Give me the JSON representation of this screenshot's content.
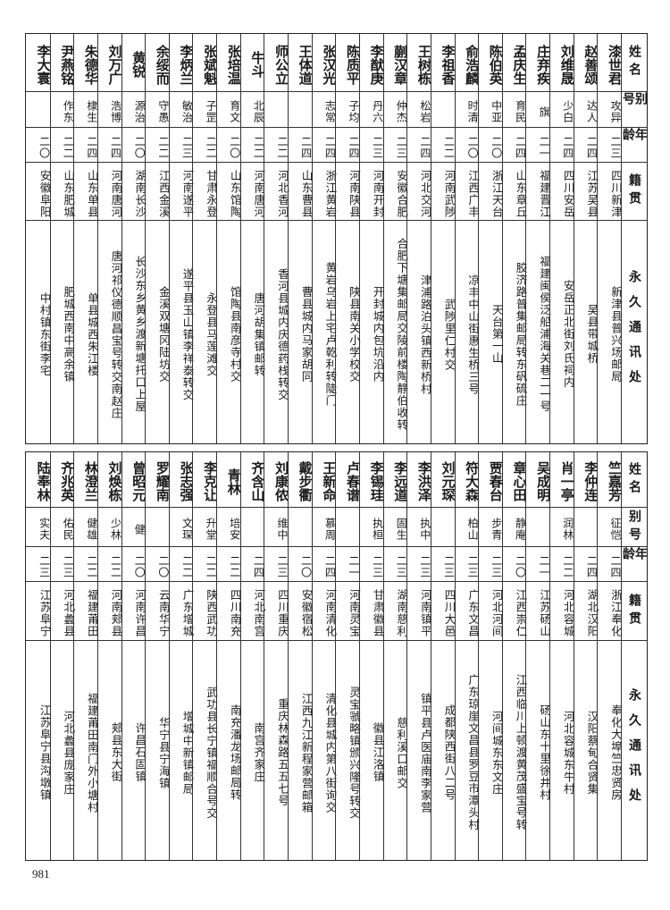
{
  "header": {
    "name": "姓名",
    "alias": "别号",
    "age": "年龄",
    "native": "籍贯",
    "address": "永久通讯处"
  },
  "sections": [
    {
      "people": [
        {
          "name": "漆世君",
          "alias": "攻异",
          "age": "二三",
          "native": "四川新津",
          "address": "新津县普兴场邮局"
        },
        {
          "name": "赵善颂",
          "alias": "达人",
          "age": "二四",
          "native": "江苏吴县",
          "address": "吴县带城桥"
        },
        {
          "name": "刘维晟",
          "alias": "少白",
          "age": "二四",
          "native": "四川安岳",
          "address": "安岳正北街刘氏祠内"
        },
        {
          "name": "庄弃疾",
          "alias": "旗",
          "age": "二一",
          "native": "福建晋江",
          "address": "福建闽侯泛船浦海关巷二一号"
        },
        {
          "name": "孟庆生",
          "alias": "育民",
          "age": "二四",
          "native": "山东章丘",
          "address": "胶济路普集邮局转东矾硫庄"
        },
        {
          "name": "陈伯英",
          "alias": "中亚",
          "age": "二〇",
          "native": "浙江天台",
          "address": "天台第一山"
        },
        {
          "name": "俞浩麟",
          "alias": "时清",
          "age": "二〇",
          "native": "江西广丰",
          "address": "凉丰中山街惠生桥三号"
        },
        {
          "name": "李祖香",
          "alias": "",
          "age": "二二",
          "native": "河南武陟",
          "address": "武陟里仁村交"
        },
        {
          "name": "王树栋",
          "alias": "松岩",
          "age": "二四",
          "native": "河北交河",
          "address": "津浦路泊头镇西新桥村"
        },
        {
          "name": "蒯汉章",
          "alias": "仲杰",
          "age": "二三",
          "native": "安徽合肥",
          "address": "合肥下塘集邮局交陵前楼陶静伯收转"
        },
        {
          "name": "李猷庚",
          "alias": "丹六",
          "age": "二三",
          "native": "河南开封",
          "address": "开封城内包坑沿内"
        },
        {
          "name": "陈质平",
          "alias": "子均",
          "age": "二四",
          "native": "河南陕县",
          "address": "陕县南关小学校交"
        },
        {
          "name": "张汉光",
          "alias": "志常",
          "age": "二四",
          "native": "浙江黄岩",
          "address": "黄岩乌岩上宅卢乾利转陡门"
        },
        {
          "name": "王体道",
          "alias": "",
          "age": "二四",
          "native": "山东曹县",
          "address": "曹县城内马家胡同"
        },
        {
          "name": "师公立",
          "alias": "",
          "age": "二二",
          "native": "河北香河",
          "address": "香河县城内庆德药栈转交"
        },
        {
          "name": "牛斗",
          "alias": "北辰",
          "age": "二二",
          "native": "河南唐河",
          "address": "唐河胡集镇邮转"
        },
        {
          "name": "张培温",
          "alias": "育文",
          "age": "二〇",
          "native": "山东馆陶",
          "address": "馆陶县南彦寺村交"
        },
        {
          "name": "张斌魁",
          "alias": "子罡",
          "age": "二二",
          "native": "甘肃永登",
          "address": "永登县马莲滩交"
        },
        {
          "name": "李炳兰",
          "alias": "敏治",
          "age": "二三",
          "native": "河南遂平",
          "address": "遂平县玉山镇李祥泰转交"
        },
        {
          "name": "余绥而",
          "alias": "守愚",
          "age": "二二",
          "native": "江西金溪",
          "address": "金溪双塘冈陆坊交"
        },
        {
          "name": "黄锐",
          "alias": "源治",
          "age": "二〇",
          "native": "湖南长沙",
          "address": "长沙东乡黄乡渡新塘托口上屋"
        },
        {
          "name": "刘万广",
          "alias": "浩博",
          "age": "二四",
          "native": "河南唐河",
          "address": "唐河祁仪德顺昌宝号转交南赵庄"
        },
        {
          "name": "朱德华",
          "alias": "棣生",
          "age": "二四",
          "native": "山东单县",
          "address": "单县城西朱江楼"
        },
        {
          "name": "尹燕铭",
          "alias": "作东",
          "age": "二二",
          "native": "山东肥城",
          "address": "肥城西南中高余镇"
        },
        {
          "name": "李大寰",
          "alias": "",
          "age": "二〇",
          "native": "安徽阜阳",
          "address": "中村镇东街李宅"
        }
      ]
    },
    {
      "people": [
        {
          "name": "竺嘉芳",
          "alias": "征恺",
          "age": "二四",
          "native": "浙江奉化",
          "address": "奉化大埠竺忠贤房"
        },
        {
          "name": "李仲连",
          "alias": "",
          "age": "二四",
          "native": "湖北汉阳",
          "address": "汉阳蔡甸合贤集"
        },
        {
          "name": "肖一亭",
          "alias": "润林",
          "age": "二二",
          "native": "河北容城",
          "address": "河北容城东牛村"
        },
        {
          "name": "吴成明",
          "alias": "",
          "age": "二一",
          "native": "江苏砀山",
          "address": "砀山东十里徐井村"
        },
        {
          "name": "章心田",
          "alias": "静庵",
          "age": "二〇",
          "native": "江西崇仁",
          "address": "江西临川上顿渡黄茂盛宝号转"
        },
        {
          "name": "贾春台",
          "alias": "步青",
          "age": "二三",
          "native": "河北河间",
          "address": "河间城东东文庄"
        },
        {
          "name": "符大森",
          "alias": "柏山",
          "age": "二三",
          "native": "广东文昌",
          "address": "广东琼崖文昌县罗豆市潭头村"
        },
        {
          "name": "刘元琛",
          "alias": "",
          "age": "二三",
          "native": "四川大邑",
          "address": "成都陕西街八二号"
        },
        {
          "name": "李洪泽",
          "alias": "执中",
          "age": "二三",
          "native": "河南镇平",
          "address": "镇平县卢医庙南李家营"
        },
        {
          "name": "李远道",
          "alias": "固生",
          "age": "二三",
          "native": "湖南慈利",
          "address": "慈利溪口邮交"
        },
        {
          "name": "李锡珪",
          "alias": "执桓",
          "age": "二三",
          "native": "甘肃徽县",
          "address": "徽县江洛镇"
        },
        {
          "name": "卢春谱",
          "alias": "",
          "age": "二一",
          "native": "河南灵宝",
          "address": "灵宝虢略镇颁兴隆号转交"
        },
        {
          "name": "王新命",
          "alias": "慕周",
          "age": "二四",
          "native": "河南清化",
          "address": "清化县城内第八街询交"
        },
        {
          "name": "戴步衢",
          "alias": "",
          "age": "二〇",
          "native": "安徽宿松",
          "address": "江西九江新程家营邮箱"
        },
        {
          "name": "刘康侬",
          "alias": "维中",
          "age": "二三",
          "native": "四川重庆",
          "address": "重庆林森路五五七号"
        },
        {
          "name": "齐含山",
          "alias": "",
          "age": "二四",
          "native": "河北南宫",
          "address": "南宫齐家庄"
        },
        {
          "name": "青林",
          "alias": "培安",
          "age": "二二",
          "native": "四川南充",
          "address": "南充潘龙场邮局转"
        },
        {
          "name": "李克让",
          "alias": "升堂",
          "age": "二二",
          "native": "陕西武功",
          "address": "武功县长宁镇福顺合号交"
        },
        {
          "name": "张志强",
          "alias": "文琛",
          "age": "二二",
          "native": "广东增城",
          "address": "增城中新镇邮局"
        },
        {
          "name": "罗耀南",
          "alias": "",
          "age": "二〇",
          "native": "云南华宁",
          "address": "华宁县宁海镇"
        },
        {
          "name": "曾昭元",
          "alias": "健",
          "age": "二〇",
          "native": "河南许昌",
          "address": "许昌石固镇"
        },
        {
          "name": "刘焕栋",
          "alias": "少林",
          "age": "二二",
          "native": "河南郏县",
          "address": "郏县东大街"
        },
        {
          "name": "林澄兰",
          "alias": "健雄",
          "age": "二二",
          "native": "福建莆田",
          "address": "福建莆田南门外小塘村"
        },
        {
          "name": "齐兆英",
          "alias": "佑民",
          "age": "二三",
          "native": "河北蠡县",
          "address": "河北蠡县庞家庄"
        },
        {
          "name": "陆奉林",
          "alias": "实夫",
          "age": "二三",
          "native": "江苏阜宁",
          "address": "江苏阜宁县沟墩镇"
        }
      ]
    }
  ],
  "page_number": "981"
}
